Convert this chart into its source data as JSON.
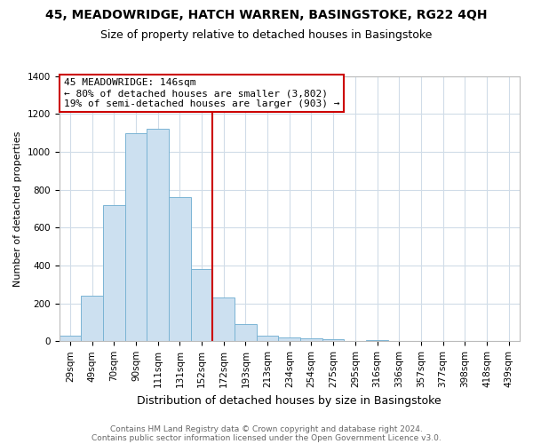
{
  "title": "45, MEADOWRIDGE, HATCH WARREN, BASINGSTOKE, RG22 4QH",
  "subtitle": "Size of property relative to detached houses in Basingstoke",
  "xlabel": "Distribution of detached houses by size in Basingstoke",
  "ylabel": "Number of detached properties",
  "bar_labels": [
    "29sqm",
    "49sqm",
    "70sqm",
    "90sqm",
    "111sqm",
    "131sqm",
    "152sqm",
    "172sqm",
    "193sqm",
    "213sqm",
    "234sqm",
    "254sqm",
    "275sqm",
    "295sqm",
    "316sqm",
    "336sqm",
    "357sqm",
    "377sqm",
    "398sqm",
    "418sqm",
    "439sqm"
  ],
  "bar_values": [
    30,
    240,
    720,
    1100,
    1120,
    760,
    380,
    230,
    90,
    30,
    20,
    15,
    10,
    0,
    8,
    0,
    0,
    0,
    0,
    0,
    0
  ],
  "bar_color": "#cce0f0",
  "bar_edge_color": "#7ab4d4",
  "vline_pos": 6.5,
  "vline_color": "#cc0000",
  "ylim": [
    0,
    1400
  ],
  "yticks": [
    0,
    200,
    400,
    600,
    800,
    1000,
    1200,
    1400
  ],
  "annotation_title": "45 MEADOWRIDGE: 146sqm",
  "annotation_line1": "← 80% of detached houses are smaller (3,802)",
  "annotation_line2": "19% of semi-detached houses are larger (903) →",
  "annotation_box_facecolor": "#ffffff",
  "annotation_box_edgecolor": "#cc0000",
  "footer_line1": "Contains HM Land Registry data © Crown copyright and database right 2024.",
  "footer_line2": "Contains public sector information licensed under the Open Government Licence v3.0.",
  "background_color": "#ffffff",
  "grid_color": "#d0dce8",
  "title_fontsize": 10,
  "subtitle_fontsize": 9,
  "ylabel_fontsize": 8,
  "xlabel_fontsize": 9,
  "tick_fontsize": 7.5,
  "annotation_fontsize": 8,
  "footer_fontsize": 6.5
}
